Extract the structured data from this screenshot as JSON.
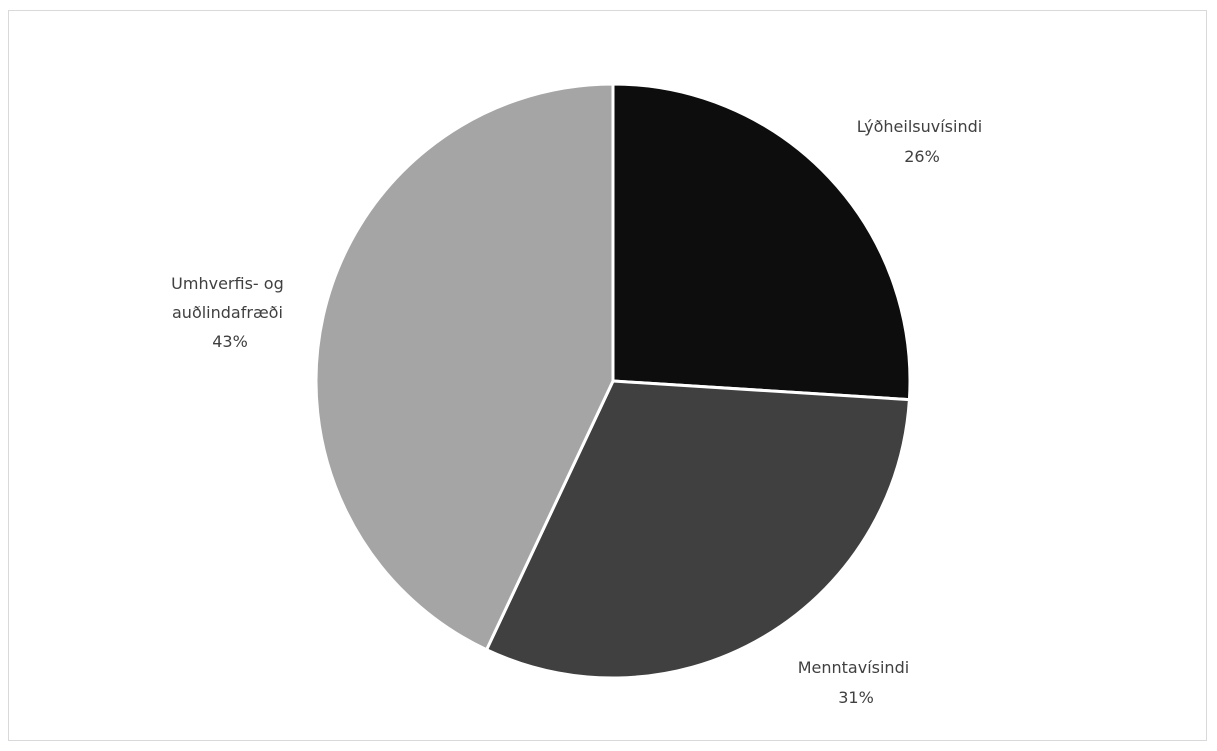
{
  "chart_data": {
    "type": "pie",
    "title": "",
    "legend": "none",
    "start_angle_deg": 0,
    "direction": "clockwise",
    "slices": [
      {
        "category": "Lýðheilsuvísindi",
        "value": 26,
        "value_label": "26%",
        "label_lines": [
          "Lýðheilsuvísindi"
        ],
        "color": "#0d0d0d"
      },
      {
        "category": "Menntavísindi",
        "value": 31,
        "value_label": "31%",
        "label_lines": [
          "Menntavísindi"
        ],
        "color": "#404040"
      },
      {
        "category": "Umhverfis- og auðlindafræði",
        "value": 43,
        "value_label": "43%",
        "label_lines": [
          "Umhverfis- og",
          "auðlindafræði"
        ],
        "color": "#a5a5a5"
      }
    ]
  }
}
